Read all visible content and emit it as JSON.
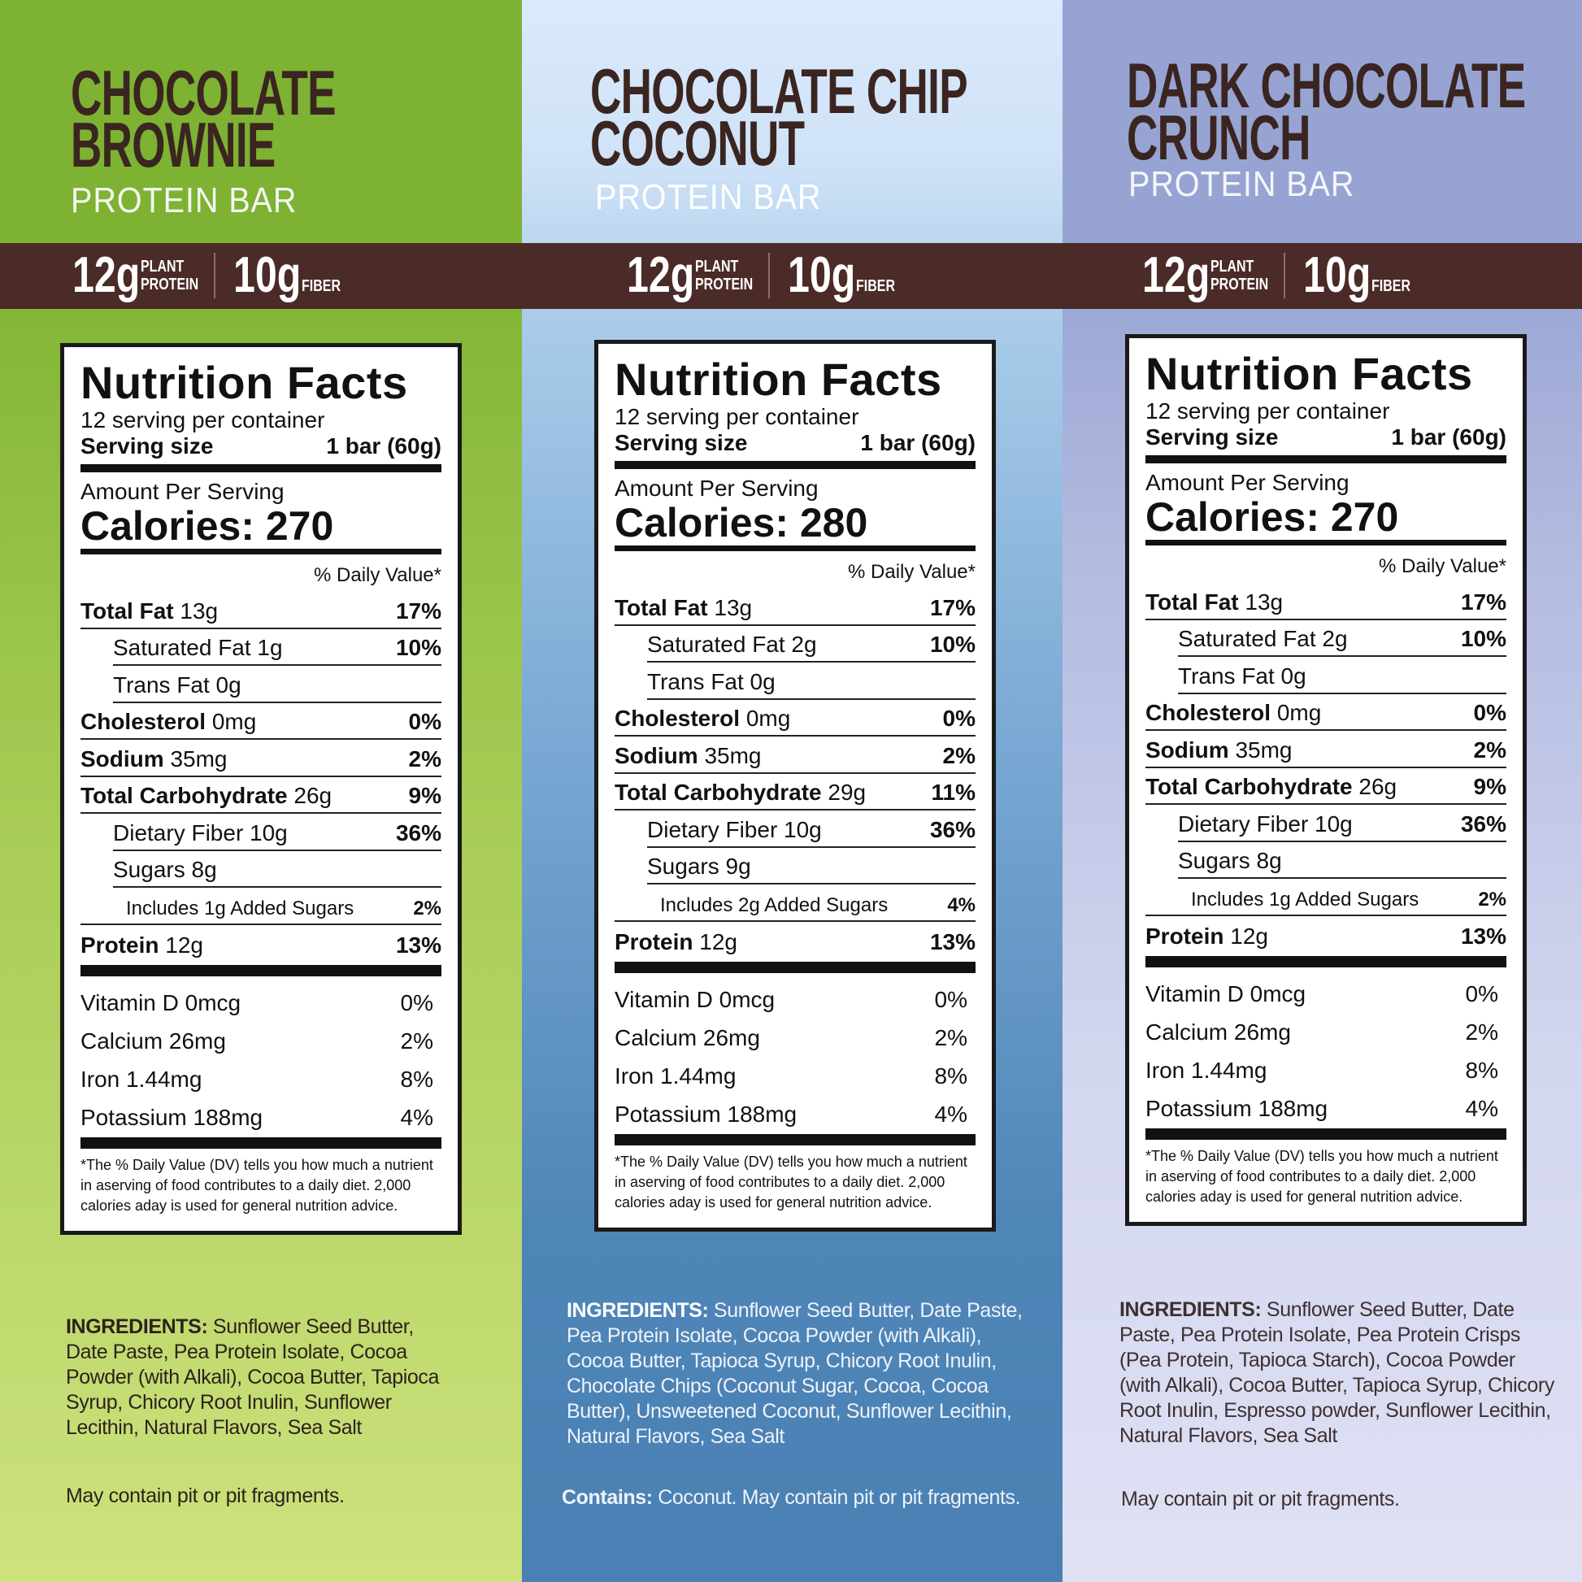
{
  "colors": {
    "band": "#4a2b28",
    "title": "#3b2520",
    "col1": "#7db233",
    "col2": "#cfe2f7",
    "col3": "#97a3d2"
  },
  "products": [
    {
      "title_lines": [
        "CHOCOLATE",
        "BROWNIE"
      ],
      "subtitle": "PROTEIN BAR",
      "stats": {
        "protein_value": "12g",
        "protein_label_1": "PLANT",
        "protein_label_2": "PROTEIN",
        "fiber_value": "10g",
        "fiber_label": "FIBER"
      },
      "facts": {
        "heading": "Nutrition Facts",
        "servings": "12 serving per container",
        "serving_size_label": "Serving size",
        "serving_size_value": "1 bar (60g)",
        "amount_label": "Amount Per Serving",
        "calories": "Calories: 270",
        "dv_header": "% Daily Value*",
        "rows": [
          {
            "name": "Total Fat",
            "amount": "13g",
            "dv": "17%",
            "indent": 0
          },
          {
            "name": "",
            "amount": "Saturated Fat 1g",
            "dv": "10%",
            "indent": 1
          },
          {
            "name": "",
            "amount": "Trans Fat 0g",
            "dv": "",
            "indent": 1
          },
          {
            "name": "Cholesterol",
            "amount": "0mg",
            "dv": "0%",
            "indent": 0
          },
          {
            "name": "Sodium",
            "amount": "35mg",
            "dv": "2%",
            "indent": 0
          },
          {
            "name": "Total Carbohydrate",
            "amount": "26g",
            "dv": "9%",
            "indent": 0
          },
          {
            "name": "",
            "amount": "Dietary Fiber 10g",
            "dv": "36%",
            "indent": 1
          },
          {
            "name": "",
            "amount": "Sugars 8g",
            "dv": "",
            "indent": 1
          },
          {
            "name": "",
            "amount": "Includes 1g Added Sugars",
            "dv": "2%",
            "indent": 2
          },
          {
            "name": "Protein",
            "amount": "12g",
            "dv": "13%",
            "indent": 0
          }
        ],
        "vitamins": [
          {
            "label": "Vitamin D 0mcg",
            "dv": "0%"
          },
          {
            "label": "Calcium 26mg",
            "dv": "2%"
          },
          {
            "label": "Iron 1.44mg",
            "dv": "8%"
          },
          {
            "label": "Potassium 188mg",
            "dv": "4%"
          }
        ],
        "footnote": "*The % Daily Value (DV) tells you how much a nutrient in aserving of food contributes to a daily diet. 2,000 calories aday is used for general nutrition advice."
      },
      "ingredients_label": "INGREDIENTS:",
      "ingredients": "Sunflower Seed Butter, Date Paste, Pea Protein Isolate, Cocoa Powder (with Alkali), Cocoa Butter, Tapioca Syrup, Chicory Root Inulin, Sunflower Lecithin, Natural Flavors, Sea Salt",
      "contains_label": "",
      "warning": "May contain pit or pit fragments."
    },
    {
      "title_lines": [
        "CHOCOLATE CHIP",
        "COCONUT"
      ],
      "subtitle": "PROTEIN BAR",
      "stats": {
        "protein_value": "12g",
        "protein_label_1": "PLANT",
        "protein_label_2": "PROTEIN",
        "fiber_value": "10g",
        "fiber_label": "FIBER"
      },
      "facts": {
        "heading": "Nutrition Facts",
        "servings": "12 serving per container",
        "serving_size_label": "Serving size",
        "serving_size_value": "1 bar (60g)",
        "amount_label": "Amount Per Serving",
        "calories": "Calories: 280",
        "dv_header": "% Daily Value*",
        "rows": [
          {
            "name": "Total Fat",
            "amount": "13g",
            "dv": "17%",
            "indent": 0
          },
          {
            "name": "",
            "amount": "Saturated Fat 2g",
            "dv": "10%",
            "indent": 1
          },
          {
            "name": "",
            "amount": "Trans Fat 0g",
            "dv": "",
            "indent": 1
          },
          {
            "name": "Cholesterol",
            "amount": "0mg",
            "dv": "0%",
            "indent": 0
          },
          {
            "name": "Sodium",
            "amount": "35mg",
            "dv": "2%",
            "indent": 0
          },
          {
            "name": "Total Carbohydrate",
            "amount": "29g",
            "dv": "11%",
            "indent": 0
          },
          {
            "name": "",
            "amount": "Dietary Fiber 10g",
            "dv": "36%",
            "indent": 1
          },
          {
            "name": "",
            "amount": "Sugars 9g",
            "dv": "",
            "indent": 1
          },
          {
            "name": "",
            "amount": "Includes 2g Added Sugars",
            "dv": "4%",
            "indent": 2
          },
          {
            "name": "Protein",
            "amount": "12g",
            "dv": "13%",
            "indent": 0
          }
        ],
        "vitamins": [
          {
            "label": "Vitamin D 0mcg",
            "dv": "0%"
          },
          {
            "label": "Calcium 26mg",
            "dv": "2%"
          },
          {
            "label": "Iron 1.44mg",
            "dv": "8%"
          },
          {
            "label": "Potassium 188mg",
            "dv": "4%"
          }
        ],
        "footnote": "*The % Daily Value (DV) tells you how much a nutrient in aserving of food contributes to a daily diet. 2,000 calories aday is used for general nutrition advice."
      },
      "ingredients_label": "INGREDIENTS:",
      "ingredients": "Sunflower Seed Butter, Date Paste, Pea Protein Isolate, Cocoa Powder (with Alkali), Cocoa Butter, Tapioca Syrup, Chicory Root Inulin, Chocolate Chips (Coconut Sugar, Cocoa, Cocoa Butter), Unsweetened Coconut, Sunflower Lecithin, Natural Flavors, Sea Salt",
      "contains_label": "Contains:",
      "warning": "Coconut. May contain pit or pit fragments."
    },
    {
      "title_lines": [
        "DARK CHOCOLATE",
        "CRUNCH"
      ],
      "subtitle": "PROTEIN BAR",
      "stats": {
        "protein_value": "12g",
        "protein_label_1": "PLANT",
        "protein_label_2": "PROTEIN",
        "fiber_value": "10g",
        "fiber_label": "FIBER"
      },
      "facts": {
        "heading": "Nutrition Facts",
        "servings": "12 serving per container",
        "serving_size_label": "Serving size",
        "serving_size_value": "1 bar (60g)",
        "amount_label": "Amount Per Serving",
        "calories": "Calories: 270",
        "dv_header": "% Daily Value*",
        "rows": [
          {
            "name": "Total Fat",
            "amount": "13g",
            "dv": "17%",
            "indent": 0
          },
          {
            "name": "",
            "amount": "Saturated Fat 2g",
            "dv": "10%",
            "indent": 1
          },
          {
            "name": "",
            "amount": "Trans Fat 0g",
            "dv": "",
            "indent": 1
          },
          {
            "name": "Cholesterol",
            "amount": "0mg",
            "dv": "0%",
            "indent": 0
          },
          {
            "name": "Sodium",
            "amount": "35mg",
            "dv": "2%",
            "indent": 0
          },
          {
            "name": "Total Carbohydrate",
            "amount": "26g",
            "dv": "9%",
            "indent": 0
          },
          {
            "name": "",
            "amount": "Dietary Fiber 10g",
            "dv": "36%",
            "indent": 1
          },
          {
            "name": "",
            "amount": "Sugars 8g",
            "dv": "",
            "indent": 1
          },
          {
            "name": "",
            "amount": "Includes 1g Added Sugars",
            "dv": "2%",
            "indent": 2
          },
          {
            "name": "Protein",
            "amount": "12g",
            "dv": "13%",
            "indent": 0
          }
        ],
        "vitamins": [
          {
            "label": "Vitamin D 0mcg",
            "dv": "0%"
          },
          {
            "label": "Calcium 26mg",
            "dv": "2%"
          },
          {
            "label": "Iron 1.44mg",
            "dv": "8%"
          },
          {
            "label": "Potassium 188mg",
            "dv": "4%"
          }
        ],
        "footnote": "*The % Daily Value (DV) tells you how much a nutrient in aserving of food contributes to a daily diet. 2,000 calories aday is used for general nutrition advice."
      },
      "ingredients_label": "INGREDIENTS:",
      "ingredients": "Sunflower Seed Butter, Date Paste, Pea Protein Isolate, Pea Protein Crisps (Pea Protein, Tapioca Starch), Cocoa Powder (with Alkali), Cocoa Butter, Tapioca Syrup, Chicory Root Inulin, Espresso powder, Sunflower Lecithin, Natural Flavors, Sea Salt",
      "contains_label": "",
      "warning": "May contain pit or pit fragments."
    }
  ]
}
